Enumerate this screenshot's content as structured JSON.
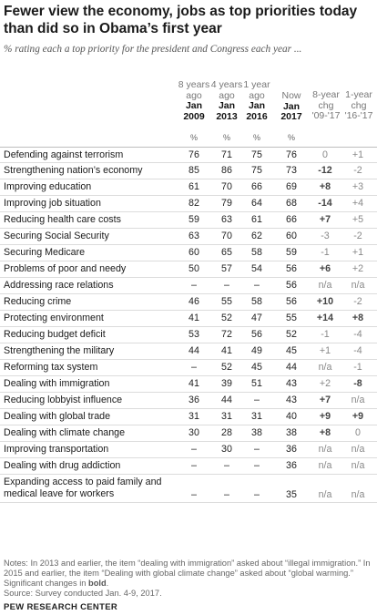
{
  "title": "Fewer view the economy, jobs as top priorities today than did so in Obama’s first year",
  "subtitle": "% rating each a top priority for the president and Congress each year ...",
  "columns": [
    {
      "ago": "8 years ago",
      "period": "Jan 2009",
      "unit": "%"
    },
    {
      "ago": "4 years ago",
      "period": "Jan 2013",
      "unit": "%"
    },
    {
      "ago": "1 year ago",
      "period": "Jan 2016",
      "unit": "%"
    },
    {
      "ago": "Now",
      "period": "Jan 2017",
      "unit": "%"
    }
  ],
  "change_columns": [
    {
      "line1": "8-year",
      "line2": "chg",
      "line3": "'09-'17"
    },
    {
      "line1": "1-year",
      "line2": "chg",
      "line3": "'16-'17"
    }
  ],
  "chart_data": {
    "type": "table",
    "columns": [
      "Jan 2009",
      "Jan 2013",
      "Jan 2016",
      "Jan 2017",
      "8-year chg '09-'17",
      "1-year chg '16-'17"
    ],
    "rows": [
      {
        "label": "Defending against terrorism",
        "values": [
          "76",
          "71",
          "75",
          "76"
        ],
        "chg8": "0",
        "chg1": "+1",
        "sig8": false,
        "sig1": false
      },
      {
        "label": "Strengthening nation’s economy",
        "values": [
          "85",
          "86",
          "75",
          "73"
        ],
        "chg8": "-12",
        "chg1": "-2",
        "sig8": true,
        "sig1": false
      },
      {
        "label": "Improving education",
        "values": [
          "61",
          "70",
          "66",
          "69"
        ],
        "chg8": "+8",
        "chg1": "+3",
        "sig8": true,
        "sig1": false
      },
      {
        "label": "Improving job situation",
        "values": [
          "82",
          "79",
          "64",
          "68"
        ],
        "chg8": "-14",
        "chg1": "+4",
        "sig8": true,
        "sig1": false
      },
      {
        "label": "Reducing health care costs",
        "values": [
          "59",
          "63",
          "61",
          "66"
        ],
        "chg8": "+7",
        "chg1": "+5",
        "sig8": true,
        "sig1": false
      },
      {
        "label": "Securing Social Security",
        "values": [
          "63",
          "70",
          "62",
          "60"
        ],
        "chg8": "-3",
        "chg1": "-2",
        "sig8": false,
        "sig1": false
      },
      {
        "label": "Securing Medicare",
        "values": [
          "60",
          "65",
          "58",
          "59"
        ],
        "chg8": "-1",
        "chg1": "+1",
        "sig8": false,
        "sig1": false
      },
      {
        "label": "Problems of poor and needy",
        "values": [
          "50",
          "57",
          "54",
          "56"
        ],
        "chg8": "+6",
        "chg1": "+2",
        "sig8": true,
        "sig1": false
      },
      {
        "label": "Addressing race relations",
        "values": [
          "–",
          "–",
          "–",
          "56"
        ],
        "chg8": "n/a",
        "chg1": "n/a",
        "sig8": false,
        "sig1": false
      },
      {
        "label": "Reducing crime",
        "values": [
          "46",
          "55",
          "58",
          "56"
        ],
        "chg8": "+10",
        "chg1": "-2",
        "sig8": true,
        "sig1": false
      },
      {
        "label": "Protecting environment",
        "values": [
          "41",
          "52",
          "47",
          "55"
        ],
        "chg8": "+14",
        "chg1": "+8",
        "sig8": true,
        "sig1": true
      },
      {
        "label": "Reducing budget deficit",
        "values": [
          "53",
          "72",
          "56",
          "52"
        ],
        "chg8": "-1",
        "chg1": "-4",
        "sig8": false,
        "sig1": false
      },
      {
        "label": "Strengthening the military",
        "values": [
          "44",
          "41",
          "49",
          "45"
        ],
        "chg8": "+1",
        "chg1": "-4",
        "sig8": false,
        "sig1": false
      },
      {
        "label": "Reforming tax system",
        "values": [
          "–",
          "52",
          "45",
          "44"
        ],
        "chg8": "n/a",
        "chg1": "-1",
        "sig8": false,
        "sig1": false
      },
      {
        "label": "Dealing with immigration",
        "values": [
          "41",
          "39",
          "51",
          "43"
        ],
        "chg8": "+2",
        "chg1": "-8",
        "sig8": false,
        "sig1": true
      },
      {
        "label": "Reducing lobbyist influence",
        "values": [
          "36",
          "44",
          "–",
          "43"
        ],
        "chg8": "+7",
        "chg1": "n/a",
        "sig8": true,
        "sig1": false
      },
      {
        "label": "Dealing with global trade",
        "values": [
          "31",
          "31",
          "31",
          "40"
        ],
        "chg8": "+9",
        "chg1": "+9",
        "sig8": true,
        "sig1": true
      },
      {
        "label": "Dealing with climate change",
        "values": [
          "30",
          "28",
          "38",
          "38"
        ],
        "chg8": "+8",
        "chg1": "0",
        "sig8": true,
        "sig1": false
      },
      {
        "label": "Improving transportation",
        "values": [
          "–",
          "30",
          "–",
          "36"
        ],
        "chg8": "n/a",
        "chg1": "n/a",
        "sig8": false,
        "sig1": false
      },
      {
        "label": "Dealing with drug addiction",
        "values": [
          "–",
          "–",
          "–",
          "36"
        ],
        "chg8": "n/a",
        "chg1": "n/a",
        "sig8": false,
        "sig1": false
      },
      {
        "label": "Expanding access to paid family and medical leave for workers",
        "values": [
          "–",
          "–",
          "–",
          "35"
        ],
        "chg8": "n/a",
        "chg1": "n/a",
        "sig8": false,
        "sig1": false
      }
    ]
  },
  "notes_text": "Notes: In 2013 and earlier, the item “dealing with immigration” asked about “illegal immigration.” In 2015 and earlier, the item “Dealing with global climate change” asked about “global warming.” Significant changes in",
  "notes_bold": "bold",
  "notes_end": ".",
  "source": "Source: Survey conducted Jan. 4-9, 2017.",
  "brand": "PEW RESEARCH CENTER",
  "colors": {
    "significant": "#444444",
    "muted": "#888888",
    "rule": "#dcdcdc"
  }
}
